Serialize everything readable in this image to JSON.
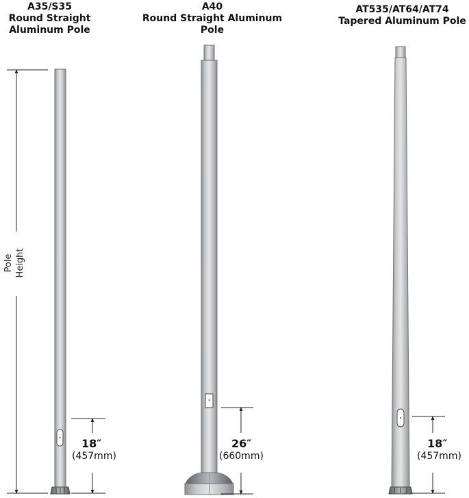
{
  "poles": [
    {
      "title_lines": [
        "A35/S35",
        "Round Straight",
        "Aluminum Pole"
      ],
      "dimension": {
        "value": "18″",
        "metric": "(457mm)"
      }
    },
    {
      "title_lines": [
        "A40",
        "Round Straight Aluminum",
        "Pole"
      ],
      "dimension": {
        "value": "26″",
        "metric": "(660mm)"
      }
    },
    {
      "title_lines": [
        "AT535/AT64/AT74",
        "Tapered Aluminum Pole"
      ],
      "dimension": {
        "value": "18″",
        "metric": "(457mm)"
      }
    }
  ],
  "height_label": {
    "line1": "Pole",
    "line2": "Height"
  }
}
